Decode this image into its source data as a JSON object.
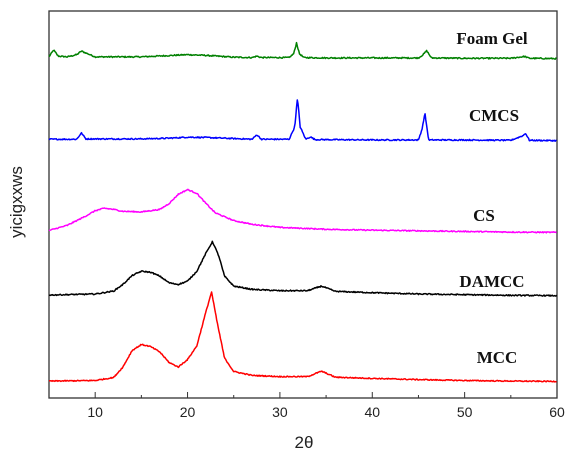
{
  "chart_data": {
    "type": "line",
    "title": "",
    "xlabel": "2θ",
    "ylabel": "yicigxxws",
    "xlim": [
      5,
      60
    ],
    "xticks": [
      10,
      20,
      30,
      40,
      50,
      60
    ],
    "grid": false,
    "legend": "none",
    "series": [
      {
        "name": "Foam Gel",
        "color": "#008000",
        "x": [
          5,
          5.5,
          6,
          7,
          8,
          8.5,
          10,
          15,
          20,
          22,
          25,
          27,
          27.5,
          28,
          31,
          31.5,
          31.8,
          32.1,
          32.6,
          35,
          40,
          45,
          45.5,
          45.9,
          46.4,
          50,
          55,
          56.5,
          57,
          60
        ],
        "y": [
          0.6,
          2.5,
          0.8,
          0.6,
          1.2,
          2.2,
          0.6,
          0.6,
          1.2,
          1.0,
          0.5,
          0.4,
          0.8,
          0.4,
          0.4,
          1.5,
          4.5,
          1.5,
          0.4,
          0.3,
          0.3,
          0.3,
          1.2,
          2.3,
          0.3,
          0.2,
          0.2,
          0.7,
          0.2,
          0.1
        ]
      },
      {
        "name": "CMCS",
        "color": "#0000ff",
        "x": [
          5,
          7,
          8,
          8.5,
          9,
          12,
          15,
          18,
          20,
          22,
          25,
          27,
          27.5,
          28,
          31,
          31.6,
          31.9,
          32.2,
          32.8,
          33.3,
          33.8,
          35,
          40,
          45,
          45.4,
          45.7,
          46.1,
          50,
          55,
          56.3,
          56.6,
          57,
          60
        ],
        "y": [
          0.5,
          0.5,
          0.5,
          2.3,
          0.6,
          0.6,
          0.6,
          0.8,
          1.1,
          1.0,
          0.7,
          0.5,
          1.8,
          0.5,
          0.5,
          4.0,
          12.2,
          4.0,
          0.5,
          1.2,
          0.4,
          0.4,
          0.3,
          0.3,
          3.5,
          8.0,
          0.3,
          0.3,
          0.2,
          1.5,
          2.2,
          0.2,
          0.1
        ]
      },
      {
        "name": "CS",
        "color": "#ff00ff",
        "x": [
          5,
          7,
          9,
          10,
          11,
          12,
          13,
          15,
          17,
          18,
          19,
          20,
          21,
          22,
          23,
          25,
          27,
          30,
          35,
          40,
          45,
          50,
          55,
          60
        ],
        "y": [
          0.8,
          2.5,
          5.5,
          7.2,
          8.0,
          7.6,
          7.0,
          6.8,
          7.6,
          9.5,
          12.5,
          14.0,
          12.8,
          9.5,
          6.5,
          4.0,
          2.8,
          1.8,
          1.2,
          0.9,
          0.7,
          0.5,
          0.3,
          0.2
        ]
      },
      {
        "name": "DAMCC",
        "color": "#000000",
        "x": [
          5,
          10,
          12,
          13,
          14,
          15,
          16,
          17,
          18,
          19,
          20,
          21,
          22,
          22.7,
          23.4,
          24,
          25,
          27,
          30,
          33,
          34.5,
          36,
          40,
          45,
          50,
          55,
          60
        ],
        "y": [
          0.3,
          0.6,
          1.5,
          3.5,
          6.2,
          7.5,
          7.2,
          6.0,
          4.0,
          3.5,
          4.5,
          7.5,
          13.0,
          16.5,
          12.0,
          6.0,
          3.0,
          2.0,
          1.6,
          1.6,
          3.0,
          1.4,
          1.0,
          0.6,
          0.4,
          0.2,
          0.1
        ]
      },
      {
        "name": "MCC",
        "color": "#ff0000",
        "x": [
          5,
          10,
          12,
          13,
          14,
          15,
          16,
          17,
          18,
          19,
          20,
          21,
          22,
          22.6,
          23.2,
          24,
          25,
          27,
          30,
          33,
          34.5,
          36,
          40,
          45,
          50,
          55,
          60
        ],
        "y": [
          0.3,
          0.5,
          1.5,
          5.0,
          10.5,
          12.5,
          11.8,
          10.0,
          6.5,
          5.0,
          7.5,
          12.0,
          23.5,
          30.0,
          20.0,
          8.0,
          3.5,
          2.2,
          1.8,
          1.8,
          3.6,
          1.6,
          1.2,
          0.8,
          0.5,
          0.3,
          0.2
        ]
      }
    ]
  }
}
